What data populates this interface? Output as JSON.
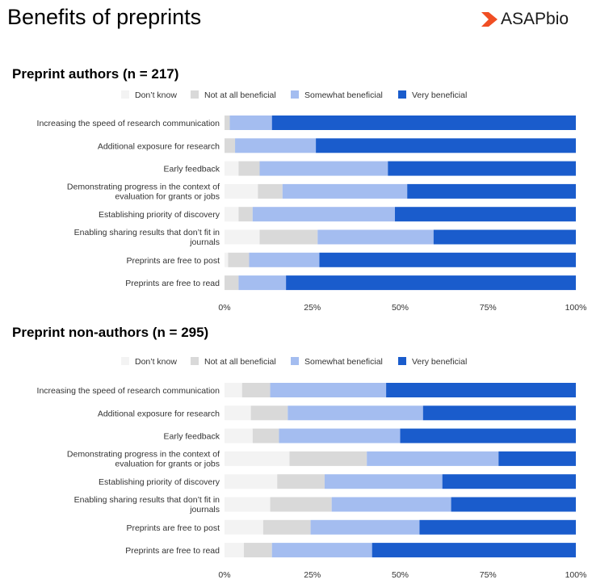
{
  "page": {
    "title": "Benefits of preprints",
    "logo_text": "ASAPbio",
    "logo_color": "#f04e23"
  },
  "chart_data": [
    {
      "type": "bar",
      "orientation": "horizontal",
      "stacked": "percent",
      "title": "Preprint authors (n = 217)",
      "categories": [
        "Increasing the speed of research communication",
        "Additional exposure for research",
        "Early feedback",
        "Demonstrating progress in the context of evaluation for grants or jobs",
        "Establishing priority of discovery",
        "Enabling sharing results that don’t fit in journals",
        "Preprints are free to post",
        "Preprints are free to read"
      ],
      "series": [
        {
          "name": "Don’t know",
          "color": "#f3f3f3",
          "values": [
            0,
            0,
            4,
            9.5,
            4,
            10,
            1,
            0
          ]
        },
        {
          "name": "Not at all beneficial",
          "color": "#d9d9d9",
          "values": [
            1.5,
            3,
            6,
            7,
            4,
            16.5,
            6,
            4
          ]
        },
        {
          "name": "Somewhat beneficial",
          "color": "#a4bdf0",
          "values": [
            12,
            23,
            36.5,
            35.5,
            40.5,
            33,
            20,
            13.5
          ]
        },
        {
          "name": "Very beneficial",
          "color": "#1a5ccc",
          "values": [
            86.5,
            74,
            53.5,
            48,
            51.5,
            40.5,
            73,
            82.5
          ]
        }
      ],
      "xlim": [
        0,
        100
      ],
      "ticks": [
        "0%",
        "25%",
        "50%",
        "75%",
        "100%"
      ],
      "legend_position": "top"
    },
    {
      "type": "bar",
      "orientation": "horizontal",
      "stacked": "percent",
      "title": "Preprint non-authors (n = 295)",
      "categories": [
        "Increasing the speed of research communication",
        "Additional exposure for research",
        "Early feedback",
        "Demonstrating progress in the context of evaluation for grants or jobs",
        "Establishing priority of discovery",
        "Enabling sharing results that don’t fit in journals",
        "Preprints are free to post",
        "Preprints are free to read"
      ],
      "series": [
        {
          "name": "Don’t know",
          "color": "#f3f3f3",
          "values": [
            5,
            7.5,
            8,
            18.5,
            15,
            13,
            11,
            5.5
          ]
        },
        {
          "name": "Not at all beneficial",
          "color": "#d9d9d9",
          "values": [
            8,
            10.5,
            7.5,
            22,
            13.5,
            17.5,
            13.5,
            8
          ]
        },
        {
          "name": "Somewhat beneficial",
          "color": "#a4bdf0",
          "values": [
            33,
            38.5,
            34.5,
            37.5,
            33.5,
            34,
            31,
            28.5
          ]
        },
        {
          "name": "Very beneficial",
          "color": "#1a5ccc",
          "values": [
            54,
            43.5,
            50,
            22,
            38,
            35.5,
            44.5,
            58
          ]
        }
      ],
      "xlim": [
        0,
        100
      ],
      "ticks": [
        "0%",
        "25%",
        "50%",
        "75%",
        "100%"
      ],
      "legend_position": "top"
    }
  ]
}
